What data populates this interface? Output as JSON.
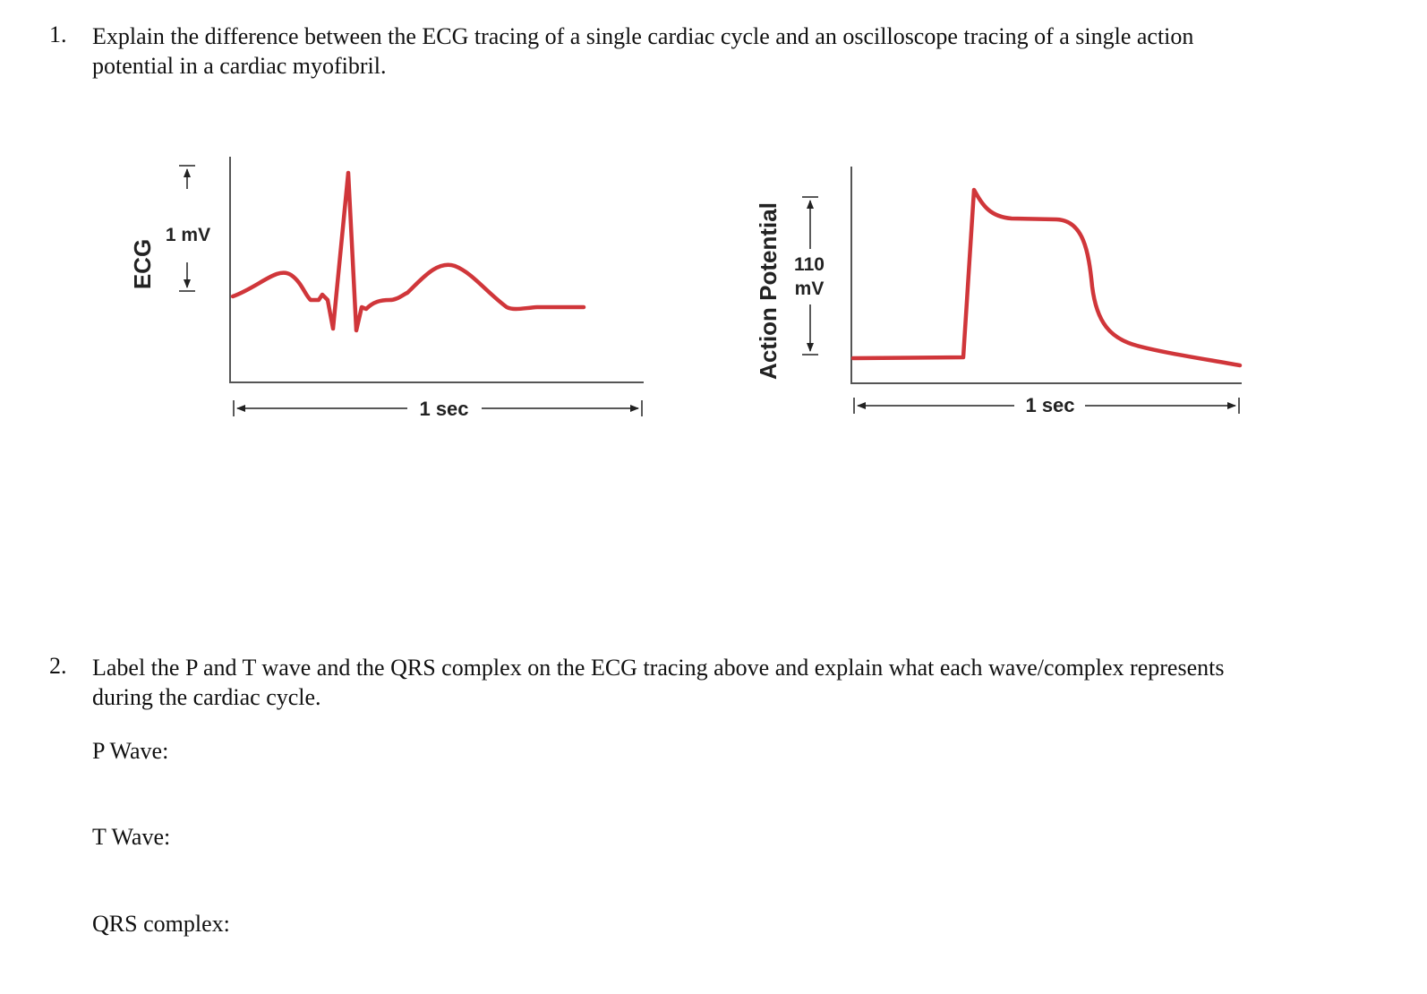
{
  "question1": {
    "number": "1.",
    "text_line1": "Explain the difference between the ECG tracing of a single cardiac cycle and an oscilloscope tracing of a single action",
    "text_line2": "potential in a cardiac myofibril."
  },
  "ecg_figure": {
    "y_title": "ECG",
    "scale_label": "1 mV",
    "time_label": "1 sec",
    "trace_color": "#d0363a",
    "axis_color": "#555555"
  },
  "ap_figure": {
    "y_title": "Action Potential",
    "scale_label_line1": "110",
    "scale_label_line2": "mV",
    "time_label": "1 sec",
    "trace_color": "#d0363a",
    "axis_color": "#555555"
  },
  "question2": {
    "number": "2.",
    "text_line1": "Label the P and T wave and the QRS complex on the ECG tracing above and explain what each wave/complex represents",
    "text_line2": "during the cardiac cycle.",
    "fields": [
      {
        "label": "P Wave:"
      },
      {
        "label": "T Wave:"
      },
      {
        "label": "QRS complex:"
      }
    ]
  }
}
